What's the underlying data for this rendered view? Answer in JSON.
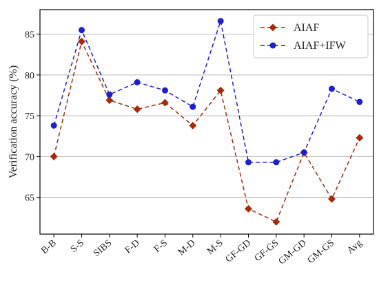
{
  "chart_data": {
    "type": "line",
    "xlabel": "",
    "ylabel": "Verification accuracy (%)",
    "categories": [
      "B-B",
      "S-S",
      "SIBS",
      "F-D",
      "F-S",
      "M-D",
      "M-S",
      "GF-GD",
      "GF-GS",
      "GM-GD",
      "GM-GS",
      "Avg"
    ],
    "ylim": [
      60.5,
      88
    ],
    "yticks": [
      65,
      70,
      75,
      80,
      85
    ],
    "grid": "horizontal",
    "legend_position": "top-right",
    "series": [
      {
        "name": "AIAF",
        "color": "#a52a0a",
        "marker": "diamond",
        "values": [
          70.0,
          84.1,
          76.9,
          75.8,
          76.6,
          73.8,
          78.1,
          63.6,
          62.0,
          70.5,
          64.8,
          72.3
        ]
      },
      {
        "name": "AIAF+IFW",
        "color": "#1f1fd0",
        "marker": "circle",
        "values": [
          73.8,
          85.5,
          77.6,
          79.1,
          78.1,
          76.1,
          86.6,
          69.3,
          69.3,
          70.5,
          78.3,
          76.7
        ]
      }
    ]
  }
}
